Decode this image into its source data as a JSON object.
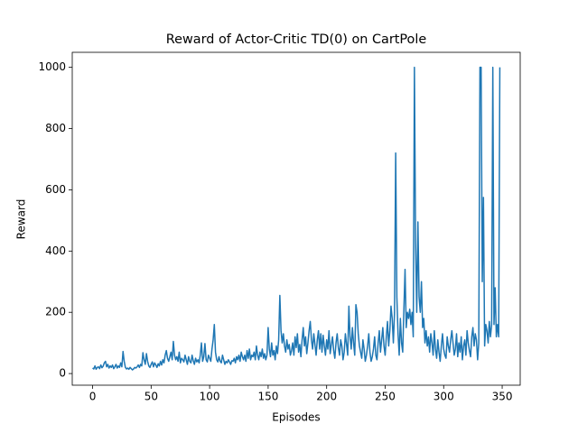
{
  "chart_data": {
    "type": "line",
    "title": "Reward of Actor-Critic TD(0) on CartPole",
    "x_label": "Episodes",
    "y_label": "Reward",
    "color": "#1f77b4",
    "xlim": [
      -17.4,
      365.4
    ],
    "ylim": [
      -38,
      1049
    ],
    "xticks": [
      0,
      50,
      100,
      150,
      200,
      250,
      300,
      350
    ],
    "yticks": [
      0,
      200,
      400,
      600,
      800,
      1000
    ],
    "x": [
      0,
      1,
      2,
      3,
      4,
      5,
      6,
      7,
      8,
      9,
      10,
      11,
      12,
      13,
      14,
      15,
      16,
      17,
      18,
      19,
      20,
      21,
      22,
      23,
      24,
      25,
      26,
      27,
      28,
      29,
      30,
      31,
      32,
      33,
      34,
      35,
      36,
      37,
      38,
      39,
      40,
      41,
      42,
      43,
      44,
      45,
      46,
      47,
      48,
      49,
      50,
      51,
      52,
      53,
      54,
      55,
      56,
      57,
      58,
      59,
      60,
      61,
      62,
      63,
      64,
      65,
      66,
      67,
      68,
      69,
      70,
      71,
      72,
      73,
      74,
      75,
      76,
      77,
      78,
      79,
      80,
      81,
      82,
      83,
      84,
      85,
      86,
      87,
      88,
      89,
      90,
      91,
      92,
      93,
      94,
      95,
      96,
      97,
      98,
      99,
      100,
      101,
      102,
      103,
      104,
      105,
      106,
      107,
      108,
      109,
      110,
      111,
      112,
      113,
      114,
      115,
      116,
      117,
      118,
      119,
      120,
      121,
      122,
      123,
      124,
      125,
      126,
      127,
      128,
      129,
      130,
      131,
      132,
      133,
      134,
      135,
      136,
      137,
      138,
      139,
      140,
      141,
      142,
      143,
      144,
      145,
      146,
      147,
      148,
      149,
      150,
      151,
      152,
      153,
      154,
      155,
      156,
      157,
      158,
      159,
      160,
      161,
      162,
      163,
      164,
      165,
      166,
      167,
      168,
      169,
      170,
      171,
      172,
      173,
      174,
      175,
      176,
      177,
      178,
      179,
      180,
      181,
      182,
      183,
      184,
      185,
      186,
      187,
      188,
      189,
      190,
      191,
      192,
      193,
      194,
      195,
      196,
      197,
      198,
      199,
      200,
      201,
      202,
      203,
      204,
      205,
      206,
      207,
      208,
      209,
      210,
      211,
      212,
      213,
      214,
      215,
      216,
      217,
      218,
      219,
      220,
      221,
      222,
      223,
      224,
      225,
      226,
      227,
      228,
      229,
      230,
      231,
      232,
      233,
      234,
      235,
      236,
      237,
      238,
      239,
      240,
      241,
      242,
      243,
      244,
      245,
      246,
      247,
      248,
      249,
      250,
      251,
      252,
      253,
      254,
      255,
      256,
      257,
      258,
      259,
      260,
      261,
      262,
      263,
      264,
      265,
      266,
      267,
      268,
      269,
      270,
      271,
      272,
      273,
      274,
      275,
      276,
      277,
      278,
      279,
      280,
      281,
      282,
      283,
      284,
      285,
      286,
      287,
      288,
      289,
      290,
      291,
      292,
      293,
      294,
      295,
      296,
      297,
      298,
      299,
      300,
      301,
      302,
      303,
      304,
      305,
      306,
      307,
      308,
      309,
      310,
      311,
      312,
      313,
      314,
      315,
      316,
      317,
      318,
      319,
      320,
      321,
      322,
      323,
      324,
      325,
      326,
      327,
      328,
      329,
      330,
      331,
      332,
      333,
      334,
      335,
      336,
      337,
      338,
      339,
      340,
      341,
      342,
      343,
      344,
      345,
      346,
      347,
      348
    ],
    "values": [
      18,
      15,
      25,
      14,
      20,
      22,
      16,
      28,
      19,
      24,
      35,
      40,
      22,
      30,
      18,
      25,
      20,
      28,
      16,
      22,
      30,
      18,
      25,
      20,
      35,
      22,
      72,
      40,
      20,
      15,
      18,
      14,
      20,
      16,
      12,
      15,
      20,
      18,
      22,
      28,
      20,
      30,
      25,
      68,
      45,
      30,
      65,
      40,
      25,
      20,
      30,
      38,
      22,
      35,
      28,
      20,
      32,
      25,
      40,
      28,
      45,
      35,
      60,
      75,
      50,
      40,
      55,
      70,
      45,
      105,
      60,
      45,
      55,
      40,
      70,
      35,
      50,
      45,
      38,
      60,
      45,
      30,
      55,
      40,
      35,
      60,
      42,
      30,
      50,
      38,
      45,
      35,
      60,
      100,
      40,
      55,
      98,
      45,
      38,
      60,
      50,
      40,
      80,
      110,
      160,
      70,
      45,
      38,
      55,
      40,
      35,
      60,
      45,
      30,
      40,
      35,
      45,
      38,
      30,
      42,
      40,
      50,
      35,
      55,
      45,
      60,
      40,
      70,
      55,
      45,
      60,
      40,
      75,
      50,
      80,
      45,
      60,
      55,
      70,
      45,
      90,
      60,
      45,
      70,
      55,
      80,
      50,
      65,
      45,
      60,
      150,
      80,
      55,
      100,
      60,
      75,
      45,
      90,
      65,
      110,
      255,
      140,
      100,
      130,
      90,
      70,
      110,
      80,
      95,
      60,
      75,
      100,
      60,
      120,
      85,
      130,
      70,
      95,
      55,
      110,
      150,
      90,
      120,
      65,
      100,
      140,
      170,
      110,
      80,
      130,
      95,
      60,
      110,
      140,
      80,
      130,
      70,
      125,
      90,
      60,
      110,
      80,
      140,
      65,
      95,
      120,
      75,
      50,
      100,
      130,
      85,
      60,
      110,
      90,
      45,
      70,
      130,
      95,
      60,
      220,
      120,
      80,
      150,
      100,
      60,
      225,
      200,
      130,
      90,
      70,
      50,
      110,
      80,
      40,
      60,
      90,
      130,
      70,
      40,
      55,
      80,
      120,
      60,
      45,
      100,
      140,
      70,
      110,
      150,
      90,
      60,
      120,
      170,
      90,
      140,
      220,
      180,
      100,
      200,
      720,
      250,
      130,
      60,
      180,
      100,
      70,
      210,
      340,
      150,
      200,
      180,
      210,
      160,
      200,
      120,
      1000,
      430,
      200,
      495,
      250,
      200,
      300,
      150,
      180,
      100,
      140,
      90,
      120,
      70,
      130,
      100,
      60,
      140,
      80,
      50,
      110,
      70,
      40,
      90,
      130,
      80,
      60,
      50,
      120,
      90,
      70,
      110,
      140,
      100,
      60,
      80,
      130,
      55,
      100,
      70,
      120,
      45,
      90,
      110,
      60,
      140,
      100,
      75,
      55,
      120,
      150,
      90,
      130,
      110,
      45,
      100,
      1000,
      1000,
      300,
      575,
      90,
      160,
      140,
      100,
      170,
      120,
      160,
      1000,
      160,
      280,
      120,
      160,
      120,
      1000
    ]
  }
}
